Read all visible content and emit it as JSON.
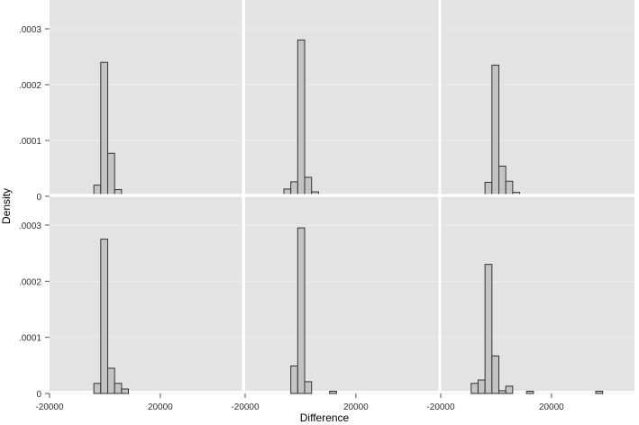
{
  "chart_data": {
    "type": "bar",
    "xlabel": "Difference",
    "ylabel": "Density",
    "ylim": [
      0,
      0.00033
    ],
    "y_ticks": [
      0,
      0.0001,
      0.0002,
      0.0003
    ],
    "y_tick_labels": [
      "0",
      ".0001",
      ".0002",
      ".0003"
    ],
    "x_ticks": [
      -20000,
      20000
    ],
    "x_tick_labels": [
      "-20000",
      "20000"
    ],
    "grid": true,
    "layout": {
      "rows": 2,
      "cols": 3
    },
    "panels": [
      {
        "xlim": [
          -20000,
          50000
        ],
        "bin_width": 2500,
        "bins": [
          {
            "x0": -4000,
            "density": 2e-05
          },
          {
            "x0": -1500,
            "density": 0.00024
          },
          {
            "x0": 1000,
            "density": 7.7e-05
          },
          {
            "x0": 3500,
            "density": 1.2e-05
          },
          {
            "x0": 6000,
            "density": 3e-06
          },
          {
            "x0": 8500,
            "density": 2e-06
          },
          {
            "x0": 11000,
            "density": 2e-06
          }
        ]
      },
      {
        "xlim": [
          -20000,
          50000
        ],
        "bin_width": 2500,
        "bins": [
          {
            "x0": -6000,
            "density": 1.3e-05
          },
          {
            "x0": -3500,
            "density": 2.6e-05
          },
          {
            "x0": -1000,
            "density": 0.00028
          },
          {
            "x0": 1500,
            "density": 3.4e-05
          },
          {
            "x0": 4000,
            "density": 8e-06
          }
        ]
      },
      {
        "xlim": [
          -20000,
          50000
        ],
        "bin_width": 2500,
        "bins": [
          {
            "x0": -9000,
            "density": 2e-06
          },
          {
            "x0": -6500,
            "density": 3e-06
          },
          {
            "x0": -4000,
            "density": 2.5e-05
          },
          {
            "x0": -1500,
            "density": 0.000235
          },
          {
            "x0": 1000,
            "density": 5.4e-05
          },
          {
            "x0": 3500,
            "density": 2.7e-05
          },
          {
            "x0": 6000,
            "density": 7e-06
          },
          {
            "x0": 8500,
            "density": 3e-06
          }
        ]
      },
      {
        "xlim": [
          -20000,
          50000
        ],
        "bin_width": 2500,
        "bins": [
          {
            "x0": -4000,
            "density": 1.8e-05
          },
          {
            "x0": -1500,
            "density": 0.000275
          },
          {
            "x0": 1000,
            "density": 4.5e-05
          },
          {
            "x0": 3500,
            "density": 1.8e-05
          },
          {
            "x0": 6000,
            "density": 8e-06
          }
        ]
      },
      {
        "xlim": [
          -20000,
          50000
        ],
        "bin_width": 2500,
        "bins": [
          {
            "x0": -3500,
            "density": 4.9e-05
          },
          {
            "x0": -1000,
            "density": 0.000295
          },
          {
            "x0": 1500,
            "density": 2.1e-05
          },
          {
            "x0": 10500,
            "density": 4e-06
          }
        ]
      },
      {
        "xlim": [
          -20000,
          50000
        ],
        "bin_width": 2500,
        "bins": [
          {
            "x0": -9000,
            "density": 1.8e-05
          },
          {
            "x0": -6500,
            "density": 2.4e-05
          },
          {
            "x0": -4000,
            "density": 0.00023
          },
          {
            "x0": -1500,
            "density": 6.7e-05
          },
          {
            "x0": 1000,
            "density": 5e-06
          },
          {
            "x0": 3500,
            "density": 1.3e-05
          },
          {
            "x0": 11000,
            "density": 4e-06
          },
          {
            "x0": 36000,
            "density": 4e-06
          }
        ]
      }
    ]
  }
}
